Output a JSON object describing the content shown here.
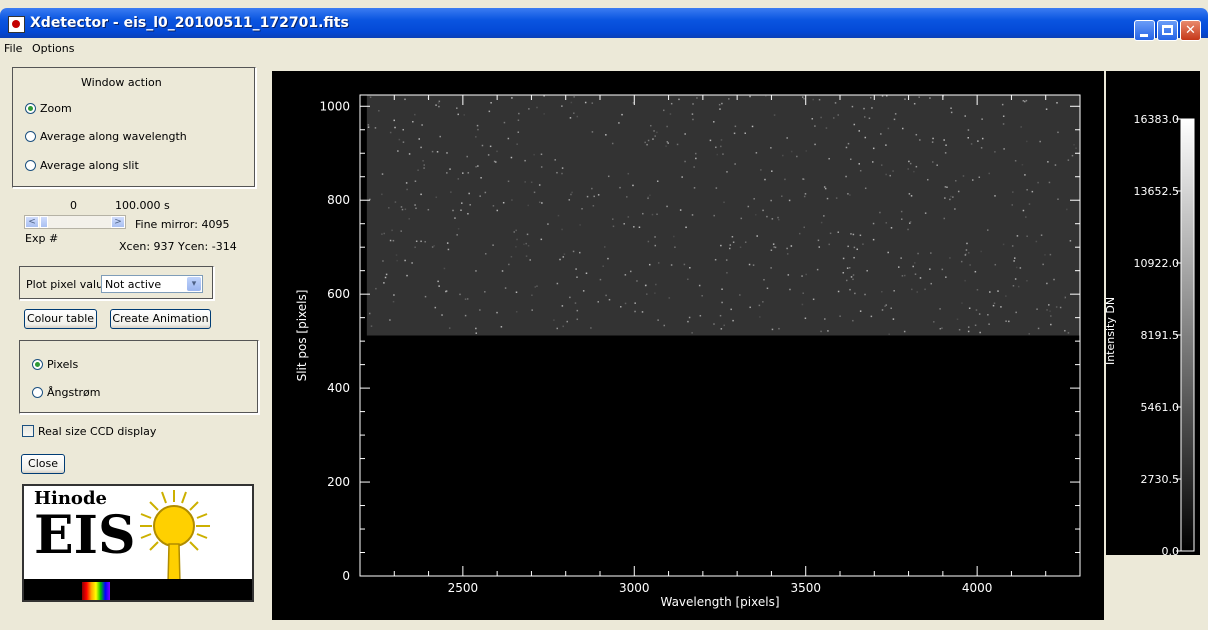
{
  "window": {
    "title": "Xdetector - eis_l0_20100511_172701.fits",
    "controls": {
      "minimize": "minimize",
      "maximize": "maximize",
      "close": "close"
    }
  },
  "menu": [
    "File",
    "Options"
  ],
  "window_action": {
    "heading": "Window action",
    "options": [
      {
        "label": "Zoom",
        "selected": true
      },
      {
        "label": "Average along wavelength",
        "selected": false
      },
      {
        "label": "Average along slit",
        "selected": false
      }
    ]
  },
  "exposure": {
    "index": "0",
    "time": "100.000 s",
    "label": "Exp #",
    "fine_mirror": "Fine mirror:  4095",
    "centers": "Xcen:  937 Ycen: -314",
    "slider_left": "<",
    "slider_right": ">"
  },
  "plot_pixel": {
    "label": "Plot pixel values",
    "value": "Not active",
    "arrow": "▾"
  },
  "buttons": {
    "colour_table": "Colour table",
    "create_animation": "Create Animation",
    "close": "Close"
  },
  "units": [
    {
      "label": "Pixels",
      "selected": true
    },
    {
      "label": "Ångstrøm",
      "selected": false
    }
  ],
  "real_size": {
    "label": "Real size CCD display",
    "checked": false
  },
  "logo": {
    "line1": "Hinode",
    "line2": "EIS"
  },
  "chart_data": {
    "type": "heatmap",
    "xlabel": "Wavelength [pixels]",
    "ylabel": "Slit pos [pixels]",
    "xlim": [
      2200,
      4300
    ],
    "ylim": [
      0,
      1024
    ],
    "x_ticks": [
      2500,
      3000,
      3500,
      4000
    ],
    "y_ticks": [
      0,
      200,
      400,
      600,
      800,
      1000
    ],
    "data_region": {
      "x": [
        2220,
        4300
      ],
      "y": [
        512,
        1024
      ],
      "description_level": "noise"
    },
    "colorbar": {
      "label": "Intensity DN",
      "ticks": [
        "16383.0",
        "13652.5",
        "10922.0",
        "8191.5",
        "5461.0",
        "2730.5",
        "0.0"
      ],
      "range": [
        0.0,
        16383.0
      ]
    }
  }
}
